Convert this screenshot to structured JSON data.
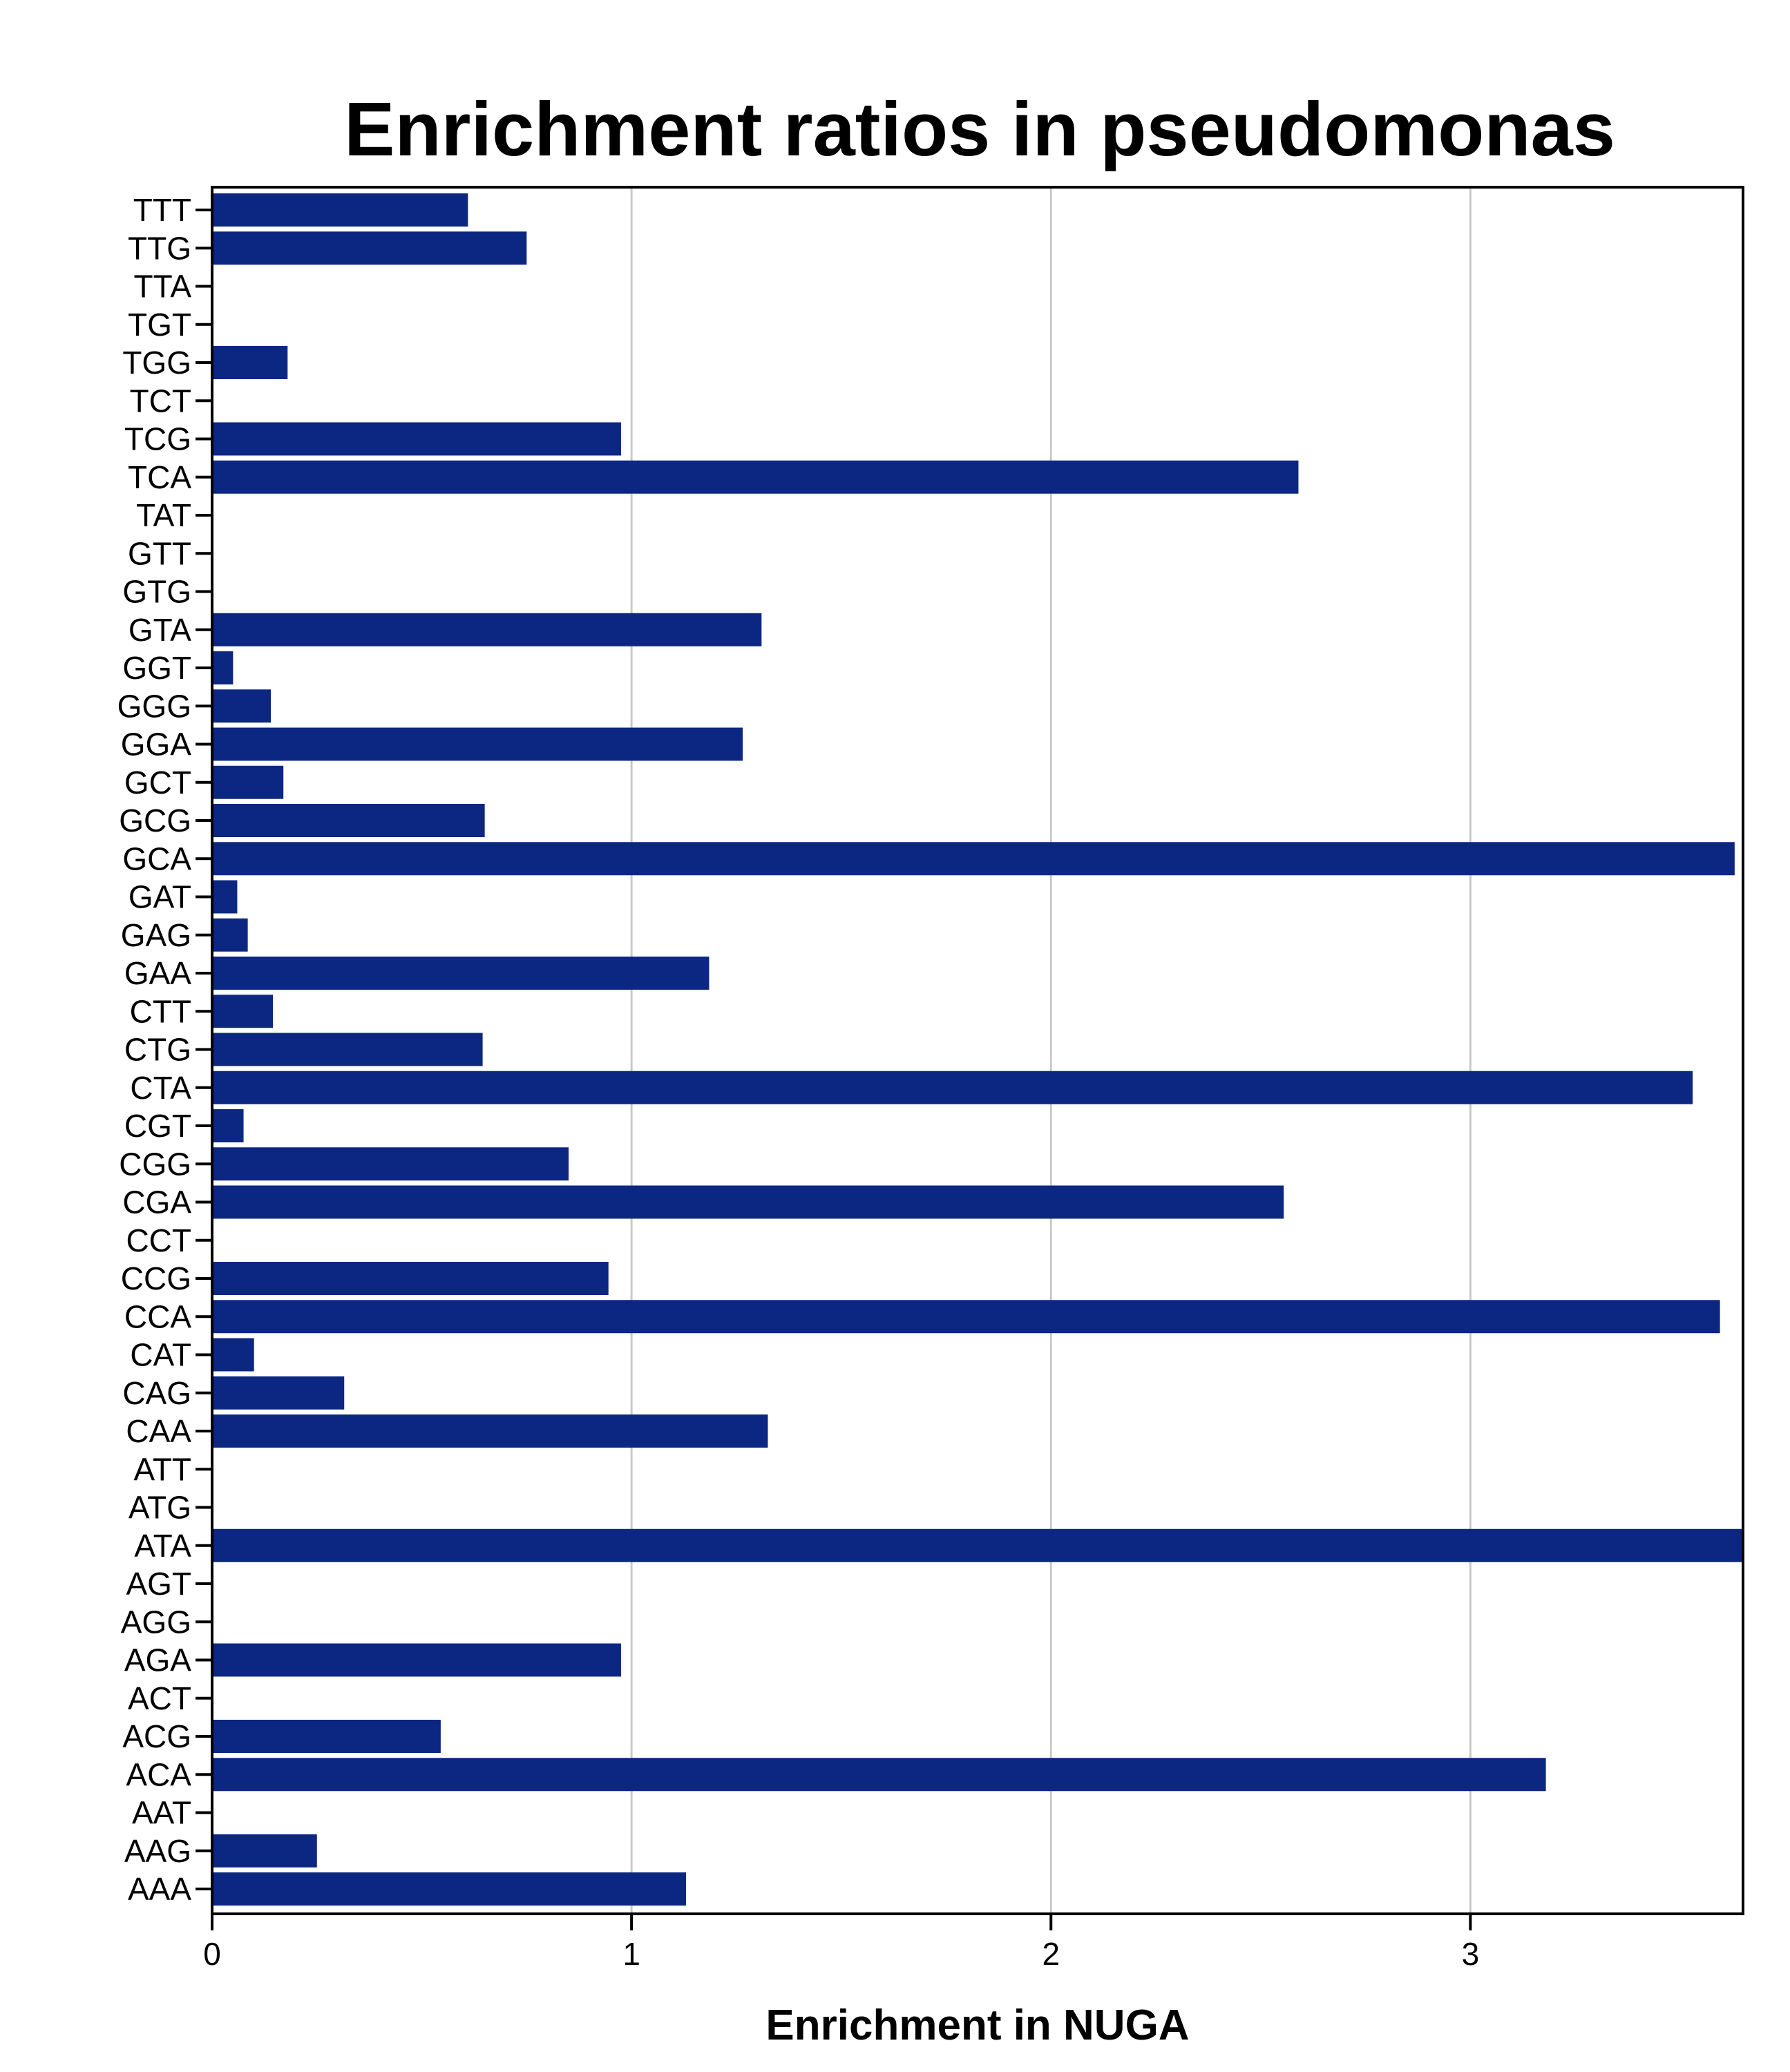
{
  "chart_data": {
    "type": "bar",
    "orientation": "horizontal",
    "title": "Enrichment ratios in pseudomonas",
    "xlabel": "Enrichment in NUGA",
    "ylabel": "",
    "xlim": [
      0,
      3.65
    ],
    "x_ticks": [
      "0",
      "1",
      "2",
      "3"
    ],
    "x_tick_values": [
      0,
      1,
      2,
      3
    ],
    "grid": "vertical",
    "bar_color": "#0b2782",
    "grid_color": "#c8c8c8",
    "categories": [
      "TTT",
      "TTG",
      "TTA",
      "TGT",
      "TGG",
      "TCT",
      "TCG",
      "TCA",
      "TAT",
      "GTT",
      "GTG",
      "GTA",
      "GGT",
      "GGG",
      "GGA",
      "GCT",
      "GCG",
      "GCA",
      "GAT",
      "GAG",
      "GAA",
      "CTT",
      "CTG",
      "CTA",
      "CGT",
      "CGG",
      "CGA",
      "CCT",
      "CCG",
      "CCA",
      "CAT",
      "CAG",
      "CAA",
      "ATT",
      "ATG",
      "ATA",
      "AGT",
      "AGG",
      "AGA",
      "ACT",
      "ACG",
      "ACA",
      "AAT",
      "AAG",
      "AAA"
    ],
    "values": [
      0.61,
      0.75,
      0,
      0,
      0.18,
      0,
      0.975,
      2.59,
      0,
      0,
      0,
      1.31,
      0.05,
      0.14,
      1.265,
      0.17,
      0.65,
      3.63,
      0.06,
      0.085,
      1.185,
      0.145,
      0.645,
      3.53,
      0.075,
      0.85,
      2.555,
      0,
      0.945,
      3.595,
      0.1,
      0.315,
      1.325,
      0,
      0,
      3.65,
      0,
      0,
      0.975,
      0,
      0.545,
      3.18,
      0,
      0.25,
      1.13
    ]
  }
}
